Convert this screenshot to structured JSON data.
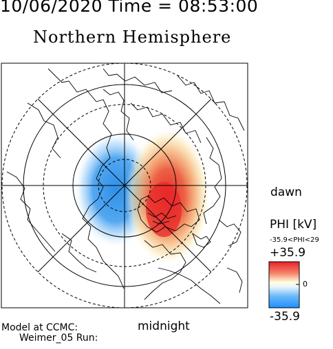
{
  "header": {
    "timestamp": "10/06/2020 Time = 08:53:00",
    "title": "Northern Hemisphere"
  },
  "map": {
    "projection": "polar-stereographic-north",
    "cells": [
      {
        "name": "negative-potential-cell",
        "sign": "negative",
        "color": "#2f8fe8"
      },
      {
        "name": "positive-potential-cell",
        "sign": "positive",
        "color": "#e8282a"
      }
    ],
    "dawn_label": "dawn",
    "midnight_label": "midnight"
  },
  "colorbar": {
    "title": "PHI [kV]",
    "range_text": "-35.9<PHI<29",
    "max_label": "+35.9",
    "zero_label": "0",
    "min_label": "-35.9",
    "colors": [
      "#e8202a",
      "#ffffe0",
      "#1e90ff"
    ]
  },
  "footer": {
    "model_line1": "Model at CCMC:",
    "model_line2": "Weimer_05 Run:"
  }
}
